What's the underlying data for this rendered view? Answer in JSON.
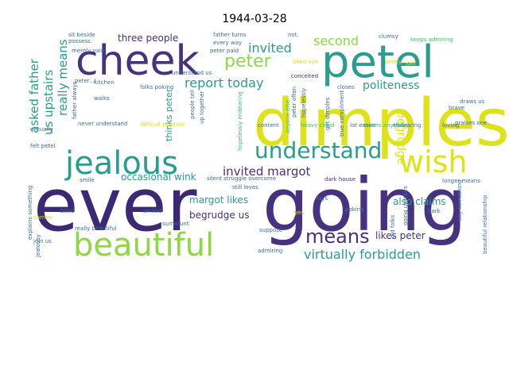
{
  "title": "1944-03-28",
  "palette": {
    "purple": "#3b2a73",
    "indigo": "#46327e",
    "teal": "#2a9d8f",
    "green": "#3fbf6f",
    "lime": "#8fd744",
    "yellow": "#dde318",
    "blue": "#3e6c99"
  },
  "words": [
    {
      "text": "dimples",
      "color": "yellow"
    },
    {
      "text": "ever",
      "color": "purple"
    },
    {
      "text": "going",
      "color": "indigo"
    },
    {
      "text": "petel",
      "color": "teal"
    },
    {
      "text": "cheek",
      "color": "indigo"
    },
    {
      "text": "jealous",
      "color": "teal"
    },
    {
      "text": "beautiful",
      "color": "lime"
    },
    {
      "text": "wish",
      "color": "yellow"
    },
    {
      "text": "understand",
      "color": "teal"
    },
    {
      "text": "peter",
      "color": "lime"
    },
    {
      "text": "means",
      "color": "indigo"
    },
    {
      "text": "report today",
      "color": "teal"
    },
    {
      "text": "invited",
      "color": "teal"
    },
    {
      "text": "second",
      "color": "lime"
    },
    {
      "text": "politeness",
      "color": "teal"
    },
    {
      "text": "invited margot",
      "color": "indigo"
    },
    {
      "text": "virtually forbidden",
      "color": "teal"
    },
    {
      "text": "really means",
      "color": "teal"
    },
    {
      "text": "asked father",
      "color": "teal"
    },
    {
      "text": "us upstairs",
      "color": "teal"
    },
    {
      "text": "thinks peter",
      "color": "teal"
    },
    {
      "text": "three people",
      "color": "indigo"
    },
    {
      "text": "begrudge",
      "color": "yellow"
    },
    {
      "text": "occasional wink",
      "color": "teal"
    },
    {
      "text": "margot likes",
      "color": "teal"
    },
    {
      "text": "begrudge us",
      "color": "indigo"
    },
    {
      "text": "likes peter",
      "color": "indigo"
    },
    {
      "text": "also claims",
      "color": "teal"
    },
    {
      "text": "sit beside",
      "color": "blue"
    },
    {
      "text": "father turns",
      "color": "blue"
    },
    {
      "text": "not.",
      "color": "blue"
    },
    {
      "text": "clumsy",
      "color": "blue"
    },
    {
      "text": "keeps admiring",
      "color": "green"
    },
    {
      "text": "every way",
      "color": "blue"
    },
    {
      "text": "peter paid",
      "color": "blue"
    },
    {
      "text": "blind eye",
      "color": "yellow"
    },
    {
      "text": "possess.",
      "color": "blue"
    },
    {
      "text": "pretty.",
      "color": "yellow"
    },
    {
      "text": "merely vain",
      "color": "blue"
    },
    {
      "text": "understand us",
      "color": "blue"
    },
    {
      "text": "conceited",
      "color": "indigo"
    },
    {
      "text": "join",
      "color": "yellow"
    },
    {
      "text": "peter...I",
      "color": "blue"
    },
    {
      "text": "folks poking",
      "color": "blue"
    },
    {
      "text": "people tell",
      "color": "blue"
    },
    {
      "text": "peter often",
      "color": "blue"
    },
    {
      "text": "hopelessly",
      "color": "blue"
    },
    {
      "text": "closes",
      "color": "blue"
    },
    {
      "text": "true compliment",
      "color": "blue"
    },
    {
      "text": "get dimples",
      "color": "blue"
    },
    {
      "text": "father always",
      "color": "blue"
    },
    {
      "text": "walks",
      "color": "blue"
    },
    {
      "text": "up together",
      "color": "blue"
    },
    {
      "text": "hopelessly endearing",
      "color": "green"
    },
    {
      "text": "anyone else",
      "color": "green"
    },
    {
      "text": "means anything",
      "color": "green"
    },
    {
      "text": "brave",
      "color": "blue"
    },
    {
      "text": "draws us",
      "color": "blue"
    },
    {
      "text": "praises one",
      "color": "blue"
    },
    {
      "text": "virtually",
      "color": "blue"
    },
    {
      "text": "never understand",
      "color": "blue"
    },
    {
      "text": "difficult position",
      "color": "yellow"
    },
    {
      "text": "content",
      "color": "blue"
    },
    {
      "text": "heavy cloud",
      "color": "green"
    },
    {
      "text": "lot easier",
      "color": "blue"
    },
    {
      "text": "endearing",
      "color": "blue"
    },
    {
      "text": "loving",
      "color": "blue"
    },
    {
      "text": "felt petel",
      "color": "blue"
    },
    {
      "text": "smile",
      "color": "blue"
    },
    {
      "text": "silent struggle overcome",
      "color": "blue"
    },
    {
      "text": "dark house",
      "color": "indigo"
    },
    {
      "text": "longer means",
      "color": "blue"
    },
    {
      "text": "explains something",
      "color": "blue"
    },
    {
      "text": "still loves",
      "color": "blue"
    },
    {
      "text": "lays",
      "color": "blue"
    },
    {
      "text": "going upstairs",
      "color": "blue"
    },
    {
      "text": "say something",
      "color": "blue"
    },
    {
      "text": "beautiful relationship",
      "color": "blue"
    },
    {
      "text": "blind",
      "color": "blue"
    },
    {
      "text": "smiled",
      "color": "blue"
    },
    {
      "text": "carries",
      "color": "yellow"
    },
    {
      "text": "join us",
      "color": "blue"
    },
    {
      "text": "jealousy",
      "color": "blue"
    },
    {
      "text": "really beautiful",
      "color": "blue"
    },
    {
      "text": "surmount",
      "color": "blue"
    },
    {
      "text": "suppose",
      "color": "blue"
    },
    {
      "text": "yes",
      "color": "yellow"
    },
    {
      "text": "poking",
      "color": "blue"
    },
    {
      "text": "old folks",
      "color": "blue"
    },
    {
      "text": "bark",
      "color": "blue"
    },
    {
      "text": "admiring",
      "color": "blue"
    },
    {
      "text": "kitchen",
      "color": "blue"
    }
  ]
}
